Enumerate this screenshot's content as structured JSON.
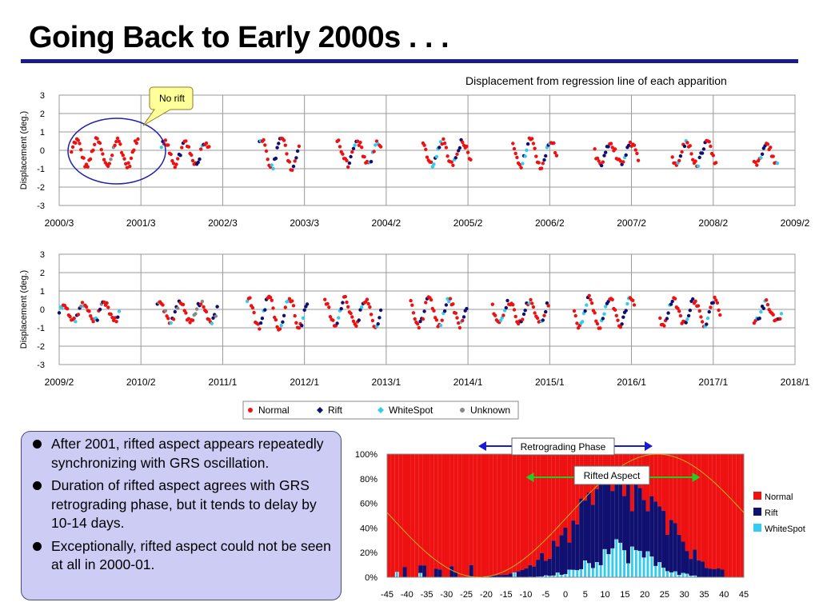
{
  "slide": {
    "title": "Going Back to Early 2000s . . .",
    "subtitle": "Displacement from regression line of each apparition"
  },
  "callout": {
    "label": "No rift"
  },
  "bullets": [
    "After 2001, rifted aspect appears repeatedly synchronizing with GRS oscillation.",
    "Duration of rifted aspect agrees with GRS retrograding phase, but it tends to delay by 10-14 days.",
    "Exceptionally, rifted aspect could not be seen at all in 2000-01."
  ],
  "colors": {
    "normal": "#ee1111",
    "rift": "#101070",
    "whitespot": "#33ccee",
    "unknown": "#888888",
    "title_rule": "#1b1b8a",
    "box_fill": "#ccccf5",
    "callout_fill": "#ffff99",
    "curve": "#d4b020",
    "arrow_blue": "#1a1ad0",
    "arrow_green": "#22cc22"
  },
  "chart_data": [
    {
      "type": "scatter",
      "ylabel": "Displacement (deg.)",
      "ylim": [
        -3,
        3
      ],
      "yticks": [
        3,
        2,
        1,
        0,
        -1,
        -2,
        -3
      ],
      "xticks": [
        "2000/3",
        "2001/3",
        "2002/3",
        "2003/3",
        "2004/2",
        "2005/2",
        "2006/2",
        "2007/2",
        "2008/2",
        "2009/2"
      ],
      "legend": [
        "Normal",
        "Rift",
        "WhiteSpot",
        "Unknown"
      ],
      "grid": true,
      "note": "Points sampled approximately per apparition; x given in years relative to first tick; all segments follow GRS oscillation",
      "segments": [
        {
          "start": 0.15,
          "end": 0.98,
          "amp": 0.7,
          "period": 0.25,
          "phase": 0.0,
          "pattern": "norift"
        },
        {
          "start": 1.25,
          "end": 1.85,
          "amp": 0.6,
          "period": 0.25,
          "phase": 0.5,
          "pattern": "normal"
        },
        {
          "start": 2.45,
          "end": 2.95,
          "amp": 0.8,
          "period": 0.25,
          "phase": 1.0,
          "pattern": "normal"
        },
        {
          "start": 3.4,
          "end": 3.95,
          "amp": 0.6,
          "period": 0.25,
          "phase": 1.5,
          "pattern": "normal"
        },
        {
          "start": 4.45,
          "end": 5.05,
          "amp": 0.65,
          "period": 0.25,
          "phase": 2.0,
          "pattern": "normal"
        },
        {
          "start": 5.55,
          "end": 6.1,
          "amp": 0.7,
          "period": 0.25,
          "phase": 2.5,
          "pattern": "normal"
        },
        {
          "start": 6.55,
          "end": 7.1,
          "amp": 0.55,
          "period": 0.25,
          "phase": 3.0,
          "pattern": "normal"
        },
        {
          "start": 7.5,
          "end": 8.05,
          "amp": 0.6,
          "period": 0.25,
          "phase": 3.5,
          "pattern": "normal"
        },
        {
          "start": 8.5,
          "end": 8.8,
          "amp": 0.5,
          "period": 0.25,
          "phase": 4.0,
          "pattern": "normal"
        }
      ]
    },
    {
      "type": "scatter",
      "ylabel": "Displacement (deg.)",
      "ylim": [
        -3,
        3
      ],
      "yticks": [
        3,
        2,
        1,
        0,
        -1,
        -2,
        -3
      ],
      "xticks": [
        "2009/2",
        "2010/2",
        "2011/1",
        "2012/1",
        "2013/1",
        "2014/1",
        "2015/1",
        "2016/1",
        "2017/1",
        "2018/1"
      ],
      "legend": [
        "Normal",
        "Rift",
        "WhiteSpot",
        "Unknown"
      ],
      "grid": true,
      "segments": [
        {
          "start": 0.0,
          "end": 0.75,
          "amp": 0.45,
          "period": 0.25,
          "phase": 0.2,
          "pattern": "mixed"
        },
        {
          "start": 1.2,
          "end": 1.95,
          "amp": 0.55,
          "period": 0.25,
          "phase": 0.7,
          "pattern": "mixed"
        },
        {
          "start": 2.3,
          "end": 3.05,
          "amp": 0.8,
          "period": 0.25,
          "phase": 1.2,
          "pattern": "normal"
        },
        {
          "start": 3.25,
          "end": 3.95,
          "amp": 0.7,
          "period": 0.25,
          "phase": 1.7,
          "pattern": "normal"
        },
        {
          "start": 4.3,
          "end": 5.0,
          "amp": 0.7,
          "period": 0.25,
          "phase": 2.2,
          "pattern": "normal"
        },
        {
          "start": 5.3,
          "end": 6.0,
          "amp": 0.6,
          "period": 0.25,
          "phase": 2.7,
          "pattern": "normal"
        },
        {
          "start": 6.3,
          "end": 7.05,
          "amp": 0.75,
          "period": 0.25,
          "phase": 3.2,
          "pattern": "normal"
        },
        {
          "start": 7.35,
          "end": 8.1,
          "amp": 0.65,
          "period": 0.25,
          "phase": 3.7,
          "pattern": "normal"
        },
        {
          "start": 8.5,
          "end": 8.85,
          "amp": 0.5,
          "period": 0.25,
          "phase": 4.2,
          "pattern": "mixed"
        }
      ]
    },
    {
      "type": "bar",
      "stacked": true,
      "percent": true,
      "yticks": [
        "100%",
        "80%",
        "60%",
        "40%",
        "20%",
        "0%"
      ],
      "xticks": [
        "-45",
        "-40",
        "-35",
        "-30",
        "-25",
        "-20",
        "-15",
        "-10",
        "-5",
        "0",
        "5",
        "10",
        "15",
        "20",
        "25",
        "30",
        "35",
        "40",
        "45"
      ],
      "x_range": [
        -45,
        45
      ],
      "legend": [
        "Normal",
        "Rift",
        "WhiteSpot"
      ],
      "phase_labels": {
        "retrograding": "Retrograding Phase",
        "rifted": "Rifted Aspect"
      },
      "retrograding_range": [
        -22,
        22
      ],
      "rifted_range": [
        -10,
        34
      ],
      "note": "Per-day stacked shares; rift and whitespot values approximated from bar heights"
    }
  ]
}
